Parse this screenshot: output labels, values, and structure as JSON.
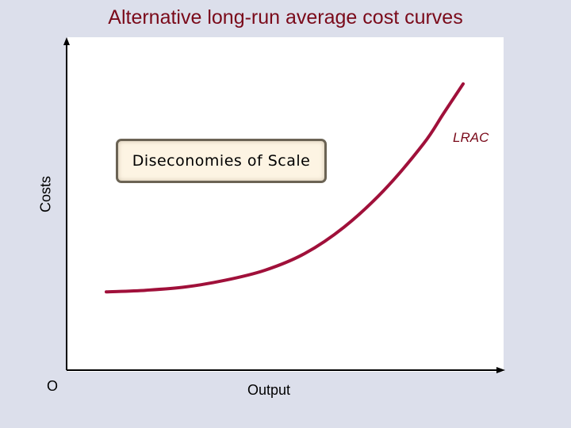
{
  "chart_data": {
    "type": "line",
    "title": "Alternative long-run average cost curves",
    "xlabel": "Output",
    "ylabel": "Costs",
    "origin_label": "O",
    "annotation": "Diseconomies of Scale",
    "grid": false,
    "series": [
      {
        "name": "LRAC",
        "color": "#a0103a",
        "x": [
          0.1,
          0.2,
          0.3,
          0.4,
          0.5,
          0.6,
          0.7,
          0.8,
          0.9,
          0.95,
          1.0
        ],
        "y": [
          0.235,
          0.24,
          0.25,
          0.27,
          0.3,
          0.35,
          0.43,
          0.54,
          0.68,
          0.77,
          0.86
        ]
      }
    ],
    "xlim": [
      0,
      1.1
    ],
    "ylim": [
      0,
      1.0
    ]
  },
  "colors": {
    "title": "#7a0a1a",
    "axes": "#000000",
    "background": "#dcdfeb",
    "plot_background": "#ffffff"
  }
}
